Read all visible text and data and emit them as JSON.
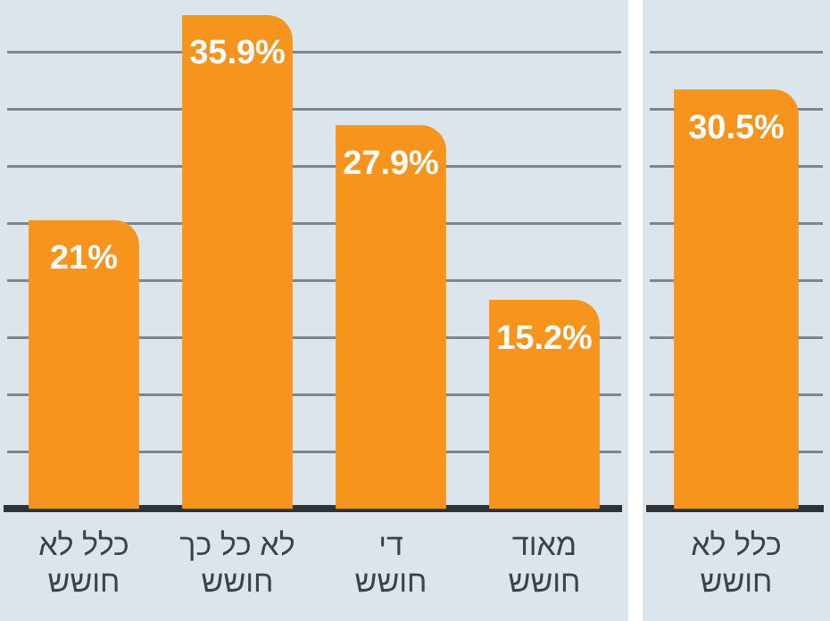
{
  "chart_data": [
    {
      "type": "bar",
      "categories": [
        "כלל לא\nחושש",
        "לא כל כך\nחושש",
        "די\nחושש",
        "מאוד\nחושש"
      ],
      "values": [
        21,
        35.9,
        27.9,
        15.2
      ],
      "value_labels": [
        "21%",
        "35.9%",
        "27.9%",
        "15.2%"
      ],
      "color": "#f7941d",
      "ylim": [
        0,
        37
      ],
      "yticks": [
        {
          "value": 4.15,
          "label": null
        },
        {
          "value": 8.3,
          "label": null
        },
        {
          "value": 12.45,
          "label": null
        },
        {
          "value": 16.6,
          "label": null
        },
        {
          "value": 20.75,
          "label": null
        },
        {
          "value": 24.9,
          "label": null
        },
        {
          "value": 29.05,
          "label": null
        },
        {
          "value": 33.2,
          "label": null
        }
      ],
      "grid": "y",
      "tick_labels": "x"
    },
    {
      "type": "bar",
      "categories": [
        "כלל לא\nחושש"
      ],
      "values": [
        30.5
      ],
      "value_labels": [
        "30.5%"
      ],
      "color": "#f7941d",
      "ylim": [
        0,
        37
      ],
      "yticks": [
        {
          "value": 4.15,
          "label": null
        },
        {
          "value": 8.3,
          "label": null
        },
        {
          "value": 12.45,
          "label": null
        },
        {
          "value": 16.6,
          "label": null
        },
        {
          "value": 20.75,
          "label": null
        },
        {
          "value": 24.9,
          "label": null
        },
        {
          "value": 29.05,
          "label": null
        },
        {
          "value": 33.2,
          "label": null
        }
      ],
      "grid": "y",
      "tick_labels": "x"
    }
  ]
}
